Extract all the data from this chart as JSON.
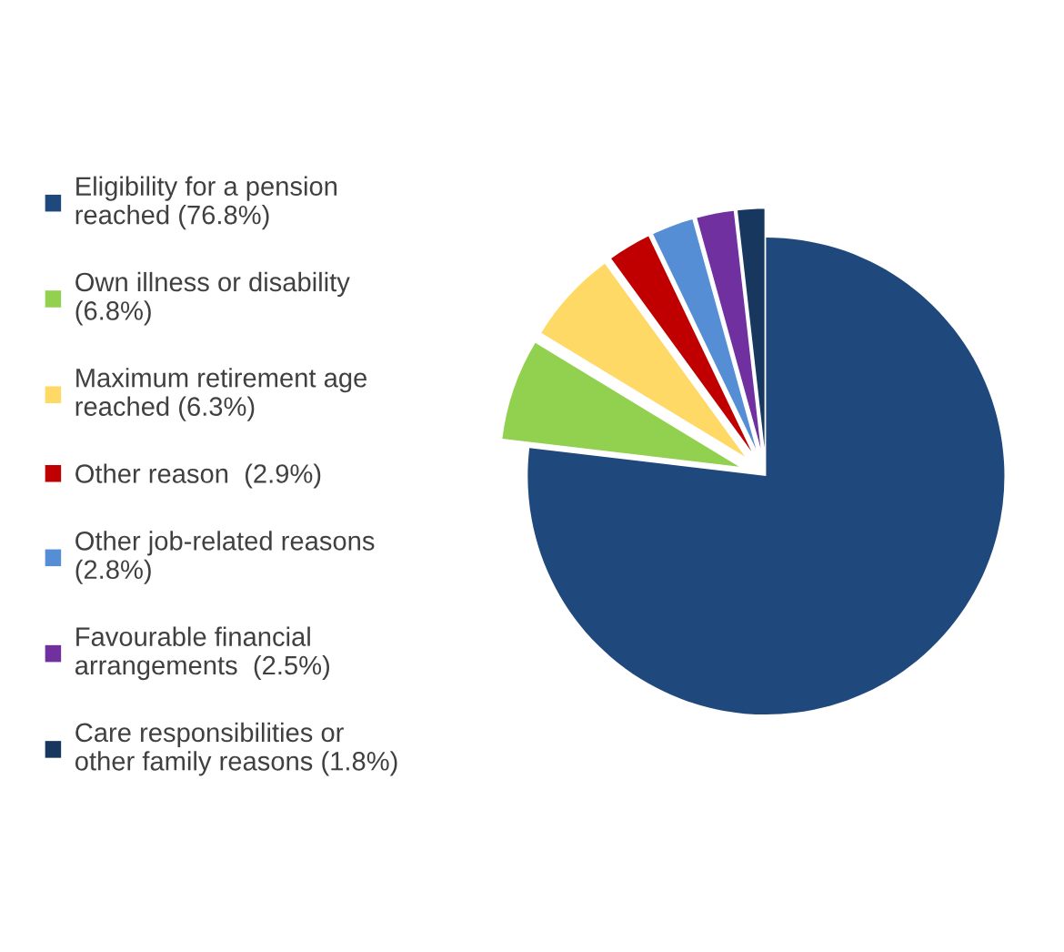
{
  "chart_data": {
    "type": "pie",
    "categories": [
      "Eligibility for a pension\nreached (76.8%)",
      "Own illness or disability\n(6.8%)",
      "Maximum retirement age\nreached (6.3%)",
      "Other reason  (2.9%)",
      "Other job-related reasons\n(2.8%)",
      "Favourable financial\narrangements  (2.5%)",
      "Care responsibilities or\nother family reasons (1.8%)"
    ],
    "values": [
      76.8,
      6.8,
      6.3,
      2.9,
      2.8,
      2.5,
      1.8
    ],
    "colors": [
      "#1f497d",
      "#92d050",
      "#ffd966",
      "#c00000",
      "#558ed5",
      "#7030a0",
      "#17375e"
    ],
    "legend": "left"
  }
}
